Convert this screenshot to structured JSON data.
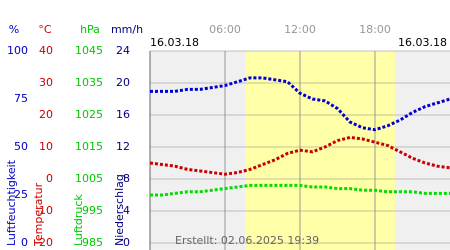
{
  "chart_data": {
    "type": "line",
    "dates": [
      "16.03.18",
      "16.03.18"
    ],
    "footer": "Erstellt: 02.06.2025 19:39",
    "xlim": [
      0,
      24
    ],
    "xticks": [
      {
        "value": 6,
        "label": "06:00"
      },
      {
        "value": 12,
        "label": "12:00"
      },
      {
        "value": 18,
        "label": "18:00"
      }
    ],
    "grid": true,
    "y_axes": {
      "y": {
        "unit": "%",
        "label": "Luftfeuchtigkeit",
        "color": "#0000c8",
        "lim": [
          0,
          100
        ],
        "ticks": [
          0,
          25,
          50,
          75,
          100
        ]
      },
      "y2": {
        "unit": "°C",
        "label": "Temperatur",
        "color": "#d00000",
        "lim": [
          -20,
          40
        ],
        "ticks": [
          -20,
          -10,
          0,
          10,
          20,
          30,
          40
        ]
      },
      "y3": {
        "unit": "hPa",
        "label": "Luftdruck",
        "color": "#00c800",
        "lim": [
          985,
          1045
        ],
        "ticks": [
          985,
          995,
          1005,
          1015,
          1025,
          1035,
          1045
        ]
      },
      "y4": {
        "unit": "mm/h",
        "label": "Niederschlag",
        "color": "#000080",
        "lim": [
          0,
          24
        ],
        "ticks": [
          0,
          4,
          8,
          12,
          16,
          20,
          24
        ]
      }
    },
    "x": [
      0,
      1,
      2,
      3,
      4,
      5,
      6,
      7,
      8,
      9,
      10,
      11,
      12,
      13,
      14,
      15,
      16,
      17,
      18,
      19,
      20,
      21,
      22,
      23,
      24
    ],
    "series": [
      {
        "axis": "y",
        "color": "#0000d0",
        "values": [
          79,
          79,
          79,
          80,
          80,
          81,
          82,
          84,
          86,
          86,
          85,
          84,
          78,
          75,
          74,
          70,
          63,
          60,
          59,
          61,
          64,
          68,
          71,
          73,
          75
        ]
      },
      {
        "axis": "y2",
        "color": "#c80000",
        "values": [
          5,
          4.5,
          4,
          3,
          2.5,
          2,
          1.5,
          2,
          3,
          4.5,
          6,
          8,
          9,
          8.5,
          10,
          12,
          13,
          12.5,
          11.5,
          10.5,
          8.5,
          6.5,
          5,
          4,
          3.5
        ]
      },
      {
        "axis": "y3",
        "color": "#00dd00",
        "values": [
          1000,
          1000,
          1000.5,
          1001,
          1001,
          1001.5,
          1002,
          1002.5,
          1003,
          1003,
          1003,
          1003,
          1003,
          1002.5,
          1002.5,
          1002,
          1002,
          1001.5,
          1001.5,
          1001,
          1001,
          1001,
          1000.5,
          1000.5,
          1000.5
        ]
      }
    ]
  }
}
